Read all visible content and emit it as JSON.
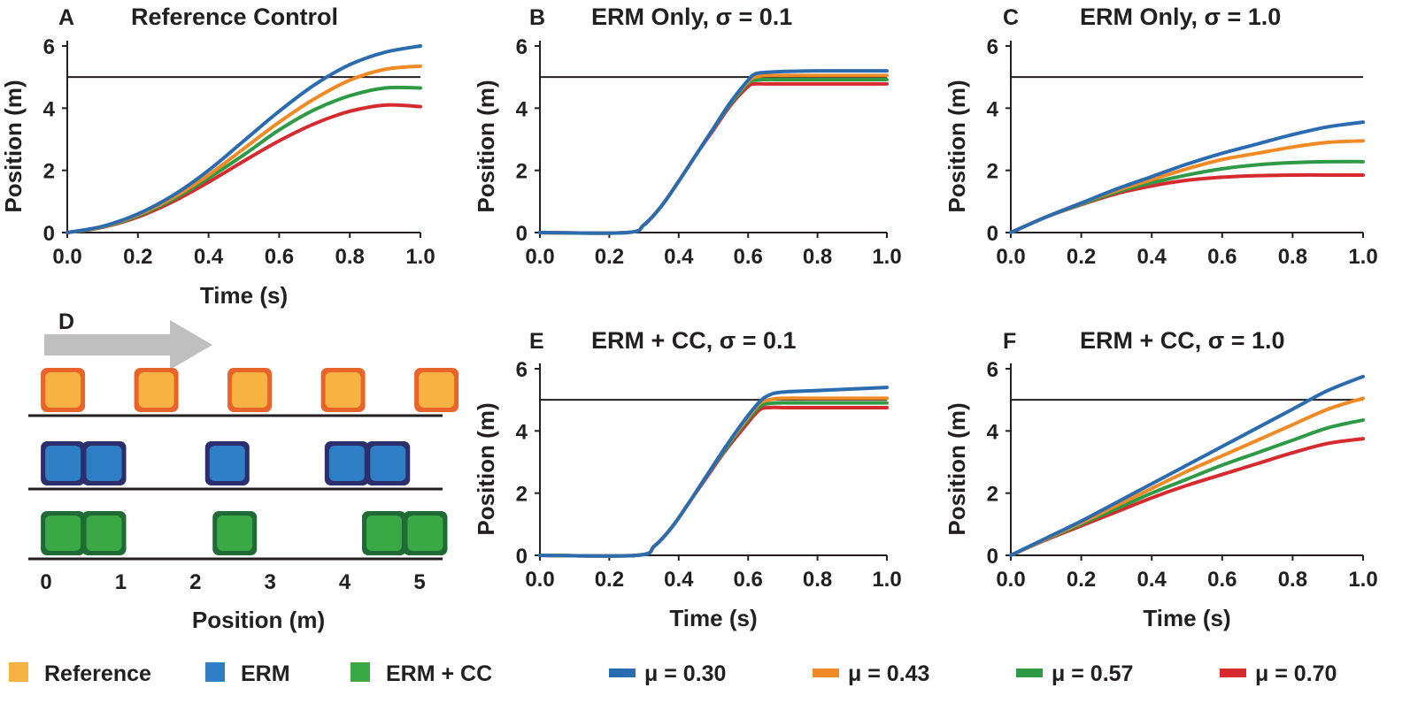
{
  "figure": {
    "colors": {
      "mu030": "#2b6cb0",
      "mu043": "#f08a24",
      "mu057": "#2e9a45",
      "mu070": "#d62a2e",
      "reference_line": "#231f20",
      "reference_box": "#f7b341",
      "reference_border": "#e8642a",
      "erm_box": "#2f7fc6",
      "erm_border": "#2d2e6e",
      "ermcc_box": "#3aa845",
      "ermcc_border": "#1f6a35",
      "arrow": "#bfbfbf"
    }
  },
  "chart_data": [
    {
      "panel": "A",
      "type": "line",
      "title": "Reference Control",
      "xlabel": "Time (s)",
      "ylabel": "Position (m)",
      "xlim": [
        0,
        1
      ],
      "ylim": [
        0,
        6
      ],
      "xticks": [
        "0.0",
        "0.2",
        "0.4",
        "0.6",
        "0.8",
        "1.0"
      ],
      "yticks": [
        "0",
        "2",
        "4",
        "6"
      ],
      "reference": 5,
      "x": [
        0,
        0.1,
        0.2,
        0.3,
        0.4,
        0.5,
        0.6,
        0.7,
        0.8,
        0.9,
        1.0
      ],
      "series": [
        {
          "name": "μ = 0.30",
          "color_key": "mu030",
          "values": [
            0,
            0.2,
            0.6,
            1.2,
            2.0,
            2.95,
            3.9,
            4.75,
            5.4,
            5.8,
            6.0
          ]
        },
        {
          "name": "μ = 0.43",
          "color_key": "mu043",
          "values": [
            0,
            0.19,
            0.57,
            1.13,
            1.85,
            2.7,
            3.55,
            4.3,
            4.9,
            5.25,
            5.35
          ]
        },
        {
          "name": "μ = 0.57",
          "color_key": "mu057",
          "values": [
            0,
            0.18,
            0.54,
            1.07,
            1.75,
            2.5,
            3.3,
            3.95,
            4.4,
            4.65,
            4.65
          ]
        },
        {
          "name": "μ = 0.70",
          "color_key": "mu070",
          "values": [
            0,
            0.17,
            0.5,
            1.0,
            1.62,
            2.3,
            2.95,
            3.5,
            3.9,
            4.1,
            4.05
          ]
        }
      ]
    },
    {
      "panel": "B",
      "type": "line",
      "title": "ERM Only, σ = 0.1",
      "xlabel": "",
      "ylabel": "Position (m)",
      "xlim": [
        0,
        1
      ],
      "ylim": [
        0,
        6
      ],
      "xticks": [
        "0.0",
        "0.2",
        "0.4",
        "0.6",
        "0.8",
        "1.0"
      ],
      "yticks": [
        "0",
        "2",
        "4",
        "6"
      ],
      "reference": 5,
      "x": [
        0,
        0.25,
        0.3,
        0.35,
        0.4,
        0.45,
        0.5,
        0.55,
        0.6,
        0.62,
        0.65,
        0.7,
        0.8,
        1.0
      ],
      "series": [
        {
          "name": "μ = 0.30",
          "color_key": "mu030",
          "values": [
            0,
            0,
            0.25,
            0.85,
            1.65,
            2.5,
            3.35,
            4.2,
            4.9,
            5.1,
            5.15,
            5.18,
            5.2,
            5.2
          ]
        },
        {
          "name": "μ = 0.43",
          "color_key": "mu043",
          "values": [
            0,
            0,
            0.25,
            0.85,
            1.65,
            2.5,
            3.35,
            4.2,
            4.85,
            5.0,
            5.05,
            5.05,
            5.05,
            5.05
          ]
        },
        {
          "name": "μ = 0.57",
          "color_key": "mu057",
          "values": [
            0,
            0,
            0.25,
            0.85,
            1.65,
            2.5,
            3.35,
            4.15,
            4.8,
            4.9,
            4.92,
            4.92,
            4.92,
            4.92
          ]
        },
        {
          "name": "μ = 0.70",
          "color_key": "mu070",
          "values": [
            0,
            0,
            0.25,
            0.85,
            1.65,
            2.5,
            3.3,
            4.1,
            4.7,
            4.78,
            4.78,
            4.78,
            4.78,
            4.78
          ]
        }
      ]
    },
    {
      "panel": "C",
      "type": "line",
      "title": "ERM Only, σ = 1.0",
      "xlabel": "",
      "ylabel": "Position (m)",
      "xlim": [
        0,
        1
      ],
      "ylim": [
        0,
        6
      ],
      "xticks": [
        "0.0",
        "0.2",
        "0.4",
        "0.6",
        "0.8",
        "1.0"
      ],
      "yticks": [
        "0",
        "2",
        "4",
        "6"
      ],
      "reference": 5,
      "x": [
        0,
        0.1,
        0.2,
        0.3,
        0.4,
        0.5,
        0.6,
        0.7,
        0.8,
        0.9,
        1.0
      ],
      "series": [
        {
          "name": "μ = 0.30",
          "color_key": "mu030",
          "values": [
            0,
            0.5,
            0.95,
            1.4,
            1.8,
            2.2,
            2.55,
            2.85,
            3.15,
            3.4,
            3.55
          ]
        },
        {
          "name": "μ = 0.43",
          "color_key": "mu043",
          "values": [
            0,
            0.5,
            0.95,
            1.35,
            1.7,
            2.05,
            2.35,
            2.55,
            2.75,
            2.9,
            2.95
          ]
        },
        {
          "name": "μ = 0.57",
          "color_key": "mu057",
          "values": [
            0,
            0.5,
            0.92,
            1.3,
            1.6,
            1.85,
            2.05,
            2.18,
            2.25,
            2.28,
            2.28
          ]
        },
        {
          "name": "μ = 0.70",
          "color_key": "mu070",
          "values": [
            0,
            0.5,
            0.9,
            1.25,
            1.5,
            1.68,
            1.78,
            1.83,
            1.85,
            1.85,
            1.85
          ]
        }
      ]
    },
    {
      "panel": "E",
      "type": "line",
      "title": "ERM + CC, σ = 0.1",
      "xlabel": "Time (s)",
      "ylabel": "Position (m)",
      "xlim": [
        0,
        1
      ],
      "ylim": [
        0,
        6
      ],
      "xticks": [
        "0.0",
        "0.2",
        "0.4",
        "0.6",
        "0.8",
        "1.0"
      ],
      "yticks": [
        "0",
        "2",
        "4",
        "6"
      ],
      "reference": 5,
      "x": [
        0,
        0.28,
        0.33,
        0.38,
        0.43,
        0.48,
        0.53,
        0.58,
        0.63,
        0.66,
        0.7,
        0.8,
        0.9,
        1.0
      ],
      "series": [
        {
          "name": "μ = 0.30",
          "color_key": "mu030",
          "values": [
            0,
            0,
            0.3,
            0.9,
            1.7,
            2.55,
            3.4,
            4.2,
            4.9,
            5.15,
            5.25,
            5.3,
            5.35,
            5.4
          ]
        },
        {
          "name": "μ = 0.43",
          "color_key": "mu043",
          "values": [
            0,
            0,
            0.3,
            0.9,
            1.7,
            2.55,
            3.4,
            4.15,
            4.85,
            5.0,
            5.05,
            5.05,
            5.05,
            5.05
          ]
        },
        {
          "name": "μ = 0.57",
          "color_key": "mu057",
          "values": [
            0,
            0,
            0.3,
            0.9,
            1.7,
            2.55,
            3.35,
            4.1,
            4.75,
            4.88,
            4.9,
            4.9,
            4.9,
            4.9
          ]
        },
        {
          "name": "μ = 0.70",
          "color_key": "mu070",
          "values": [
            0,
            0,
            0.3,
            0.9,
            1.7,
            2.5,
            3.3,
            4.0,
            4.65,
            4.75,
            4.75,
            4.75,
            4.75,
            4.75
          ]
        }
      ]
    },
    {
      "panel": "F",
      "type": "line",
      "title": "ERM + CC, σ = 1.0",
      "xlabel": "Time (s)",
      "ylabel": "Position (m)",
      "xlim": [
        0,
        1
      ],
      "ylim": [
        0,
        6
      ],
      "xticks": [
        "0.0",
        "0.2",
        "0.4",
        "0.6",
        "0.8",
        "1.0"
      ],
      "yticks": [
        "0",
        "2",
        "4",
        "6"
      ],
      "reference": 5,
      "x": [
        0,
        0.1,
        0.2,
        0.3,
        0.4,
        0.5,
        0.6,
        0.7,
        0.8,
        0.9,
        1.0
      ],
      "series": [
        {
          "name": "μ = 0.30",
          "color_key": "mu030",
          "values": [
            0,
            0.55,
            1.1,
            1.7,
            2.3,
            2.9,
            3.5,
            4.1,
            4.7,
            5.3,
            5.75
          ]
        },
        {
          "name": "μ = 0.43",
          "color_key": "mu043",
          "values": [
            0,
            0.53,
            1.05,
            1.6,
            2.15,
            2.7,
            3.2,
            3.7,
            4.2,
            4.7,
            5.05
          ]
        },
        {
          "name": "μ = 0.57",
          "color_key": "mu057",
          "values": [
            0,
            0.52,
            1.0,
            1.5,
            2.0,
            2.45,
            2.9,
            3.3,
            3.7,
            4.1,
            4.35
          ]
        },
        {
          "name": "μ = 0.70",
          "color_key": "mu070",
          "values": [
            0,
            0.5,
            0.95,
            1.4,
            1.85,
            2.25,
            2.6,
            2.95,
            3.3,
            3.6,
            3.75
          ]
        }
      ]
    }
  ],
  "panel_d": {
    "letter": "D",
    "xlabel": "Position (m)",
    "xticks": [
      "0",
      "1",
      "2",
      "3",
      "4",
      "5"
    ],
    "rows": [
      {
        "name": "Reference",
        "box_color_key": "reference_box",
        "border_color_key": "reference_border",
        "positions": [
          0.25,
          1.5,
          2.75,
          4.0,
          5.25
        ]
      },
      {
        "name": "ERM",
        "box_color_key": "erm_box",
        "border_color_key": "erm_border",
        "positions": [
          0.25,
          0.8,
          2.45,
          4.05,
          4.6
        ]
      },
      {
        "name": "ERM + CC",
        "box_color_key": "ermcc_box",
        "border_color_key": "ermcc_border",
        "positions": [
          0.25,
          0.8,
          2.55,
          4.55,
          5.1
        ]
      }
    ]
  },
  "legend": {
    "squares": [
      {
        "label": "Reference",
        "color_key": "reference_box"
      },
      {
        "label": "ERM",
        "color_key": "erm_box"
      },
      {
        "label": "ERM + CC",
        "color_key": "ermcc_box"
      }
    ],
    "lines": [
      {
        "label": "μ = 0.30",
        "color_key": "mu030"
      },
      {
        "label": "μ = 0.43",
        "color_key": "mu043"
      },
      {
        "label": "μ = 0.57",
        "color_key": "mu057"
      },
      {
        "label": "μ = 0.70",
        "color_key": "mu070"
      }
    ]
  }
}
